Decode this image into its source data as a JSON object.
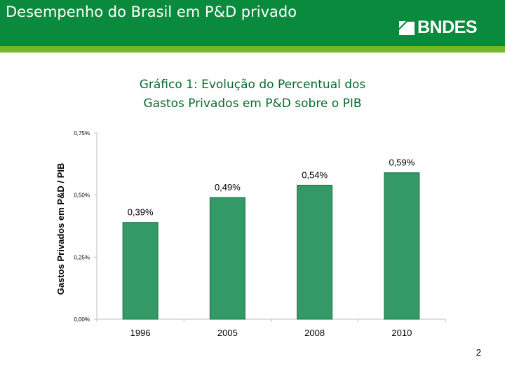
{
  "slide": {
    "title": "Desempenho do Brasil em P&D privado",
    "page_number": "2"
  },
  "logo": {
    "text": "BNDES",
    "icon": "bndes-logo-icon"
  },
  "colors": {
    "header": "#0a8a3c",
    "header_bar": "#77b82a",
    "bar": "#339966",
    "bar_border": "#1f6f45",
    "title_text": "#0a6a2f"
  },
  "chart_data": {
    "type": "bar",
    "title_lines": [
      "Gráfico 1: Evolução do Percentual dos",
      "Gastos Privados em P&D sobre o PIB"
    ],
    "xlabel": "",
    "ylabel": "Gastos Privados em P&D / PIB",
    "categories": [
      "1996",
      "2005",
      "2008",
      "2010"
    ],
    "values": [
      0.39,
      0.49,
      0.54,
      0.59
    ],
    "value_labels": [
      "0,39%",
      "0,49%",
      "0,54%",
      "0,59%"
    ],
    "ylim": [
      0,
      0.75
    ],
    "yticks": [
      0,
      0.25,
      0.5,
      0.75
    ],
    "ytick_labels": [
      "0,00%",
      "0,25%",
      "0,50%",
      "0,75%"
    ],
    "grid": false,
    "legend": "none"
  }
}
